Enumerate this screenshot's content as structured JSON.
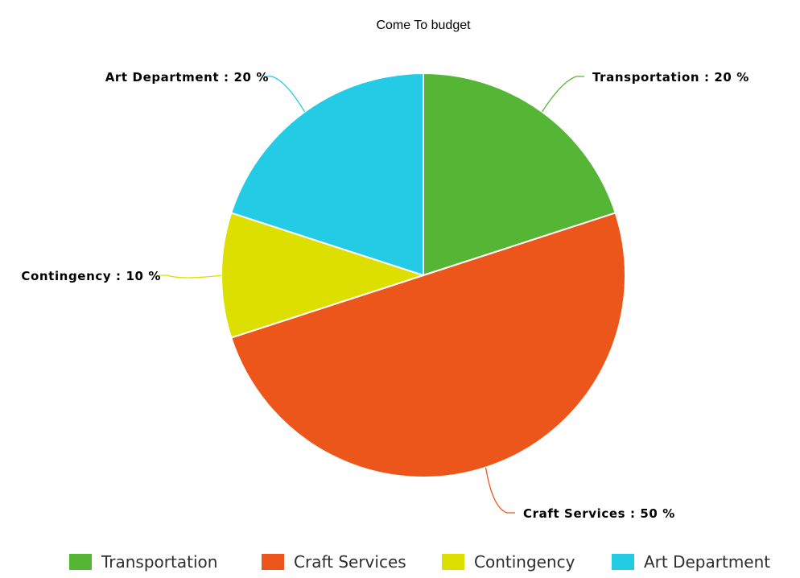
{
  "chart_data": {
    "type": "pie",
    "title": "Come To budget",
    "categories": [
      "Transportation",
      "Craft Services",
      "Contingency",
      "Art Department"
    ],
    "values": [
      20,
      50,
      10,
      20
    ],
    "unit": "%",
    "colors": [
      "#55b636",
      "#ed561b",
      "#dddf00",
      "#24cbe5"
    ],
    "data_labels": [
      "Transportation : 20 %",
      "Craft Services : 50 %",
      "Contingency : 10 %",
      "Art Department : 20 %"
    ],
    "legend": {
      "placement": "bottom",
      "entries": [
        "Transportation",
        "Craft Services",
        "Contingency",
        "Art Department"
      ]
    },
    "start_angle_deg": 0,
    "direction": "clockwise"
  }
}
